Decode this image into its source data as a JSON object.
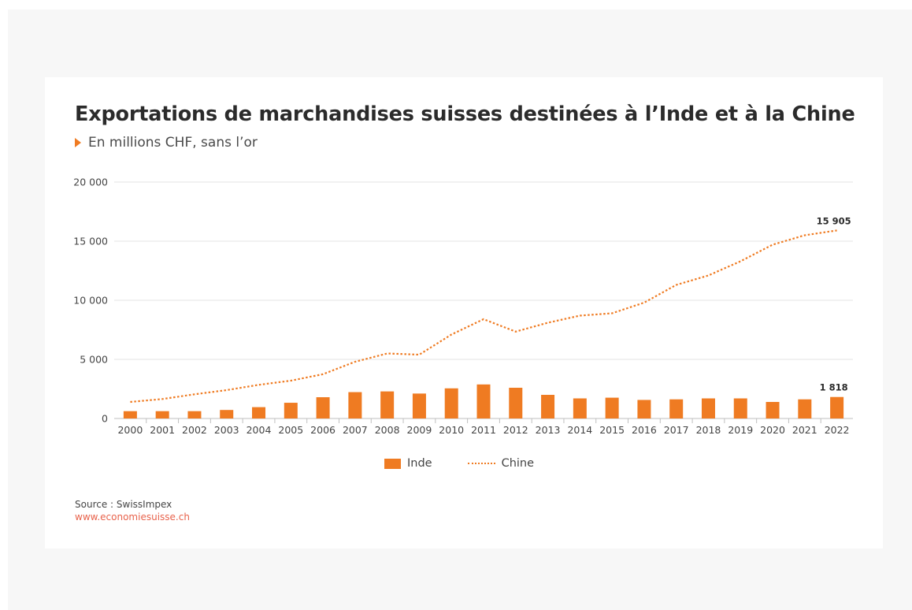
{
  "title": "Exportations de marchandises suisses destinées à l’Inde et à la Chine",
  "subtitle": "En millions CHF, sans l’or",
  "source_line": "Source : SwissImpex",
  "website": "www.economiesuisse.ch",
  "legend": {
    "bar_label": "Inde",
    "line_label": "Chine"
  },
  "colors": {
    "accent": "#ef7b22",
    "link": "#e8624b",
    "background": "#f7f7f7"
  },
  "chart_data": {
    "type": "bar",
    "categories": [
      "2000",
      "2001",
      "2002",
      "2003",
      "2004",
      "2005",
      "2006",
      "2007",
      "2008",
      "2009",
      "2010",
      "2011",
      "2012",
      "2013",
      "2014",
      "2015",
      "2016",
      "2017",
      "2018",
      "2019",
      "2020",
      "2021",
      "2022"
    ],
    "series": [
      {
        "name": "Inde",
        "type": "bar",
        "values": [
          620,
          620,
          620,
          720,
          960,
          1330,
          1800,
          2230,
          2290,
          2110,
          2550,
          2880,
          2600,
          2000,
          1700,
          1760,
          1570,
          1620,
          1700,
          1700,
          1400,
          1620,
          1818
        ]
      },
      {
        "name": "Chine",
        "type": "line",
        "values": [
          1400,
          1650,
          2050,
          2400,
          2850,
          3200,
          3750,
          4800,
          5500,
          5400,
          7100,
          8400,
          7350,
          8100,
          8700,
          8900,
          9800,
          11300,
          12100,
          13300,
          14700,
          15500,
          15905
        ]
      }
    ],
    "ylim": [
      0,
      20000
    ],
    "yticks": [
      0,
      5000,
      10000,
      15000,
      20000
    ],
    "ytick_labels": [
      "0",
      "5 000",
      "10 000",
      "15 000",
      "20 000"
    ],
    "annotations": [
      {
        "series": "Chine",
        "category": "2022",
        "text": "15 905"
      },
      {
        "series": "Inde",
        "category": "2022",
        "text": "1 818"
      }
    ],
    "grid": true,
    "legend_position": "bottom"
  }
}
